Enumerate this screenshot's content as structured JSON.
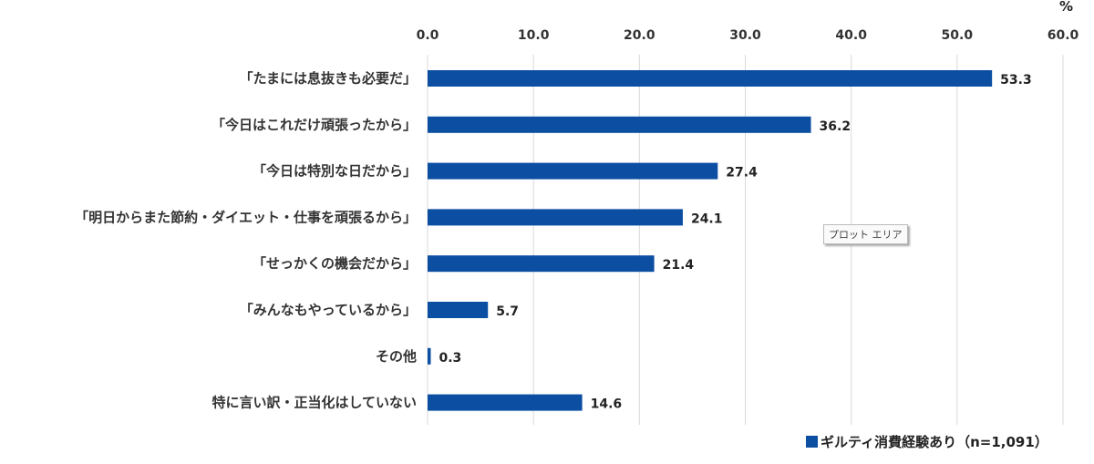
{
  "chart_data": {
    "type": "bar",
    "orientation": "horizontal",
    "categories": [
      "「たまには息抜きも必要だ」",
      "「今日はこれだけ頑張ったから」",
      "「今日は特別な日だから」",
      "「明日からまた節約・ダイエット・仕事を頑張るから」",
      "「せっかくの機会だから」",
      "「みんなもやっているから」",
      "その他",
      "特に言い訳・正当化はしていない"
    ],
    "series": [
      {
        "name": "ギルティ消費経験あり（n=1,091）",
        "values": [
          53.3,
          36.2,
          27.4,
          24.1,
          21.4,
          5.7,
          0.3,
          14.6
        ],
        "color": "#0b4ea2"
      }
    ],
    "value_labels": [
      "53.3",
      "36.2",
      "27.4",
      "24.1",
      "21.4",
      "5.7",
      "0.3",
      "14.6"
    ],
    "xlim": [
      0,
      60
    ],
    "xticks": [
      "0.0",
      "10.0",
      "20.0",
      "30.0",
      "40.0",
      "50.0",
      "60.0"
    ],
    "x_axis_position": "top",
    "unit_label": "%",
    "grid": true,
    "legend": "bottom-right"
  },
  "tooltip": "プロット エリア"
}
